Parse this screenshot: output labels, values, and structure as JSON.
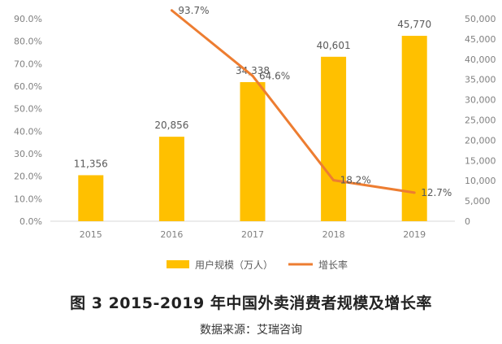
{
  "chart_data": {
    "type": "bar",
    "categories": [
      "2015",
      "2016",
      "2017",
      "2018",
      "2019"
    ],
    "series": [
      {
        "name": "用户规模（万人）",
        "kind": "bar",
        "axis": "right",
        "values": [
          11356,
          20856,
          34338,
          40601,
          45770
        ],
        "labels": [
          "11,356",
          "20,856",
          "34,338",
          "40,601",
          "45,770"
        ],
        "color": "#FFC000"
      },
      {
        "name": "增长率",
        "kind": "line",
        "axis": "left",
        "values": [
          null,
          93.7,
          64.6,
          18.2,
          12.7
        ],
        "labels": [
          "",
          "93.7%",
          "64.6%",
          "18.2%",
          "12.7%"
        ],
        "color": "#ED7D31"
      }
    ],
    "left_axis": {
      "ylim": [
        0,
        90
      ],
      "ticks": [
        "0.0%",
        "10.0%",
        "20.0%",
        "30.0%",
        "40.0%",
        "50.0%",
        "60.0%",
        "70.0%",
        "80.0%",
        "90.0%"
      ]
    },
    "right_axis": {
      "ylim": [
        0,
        50000
      ],
      "ticks": [
        "0",
        "5,000",
        "10,000",
        "15,000",
        "20,000",
        "25,000",
        "30,000",
        "35,000",
        "40,000",
        "45,000",
        "50,000"
      ]
    },
    "grid": false,
    "legend_position": "bottom",
    "title": "图 3   2015-2019 年中国外卖消费者规模及增长率",
    "source": "数据来源：艾瑞咨询"
  }
}
